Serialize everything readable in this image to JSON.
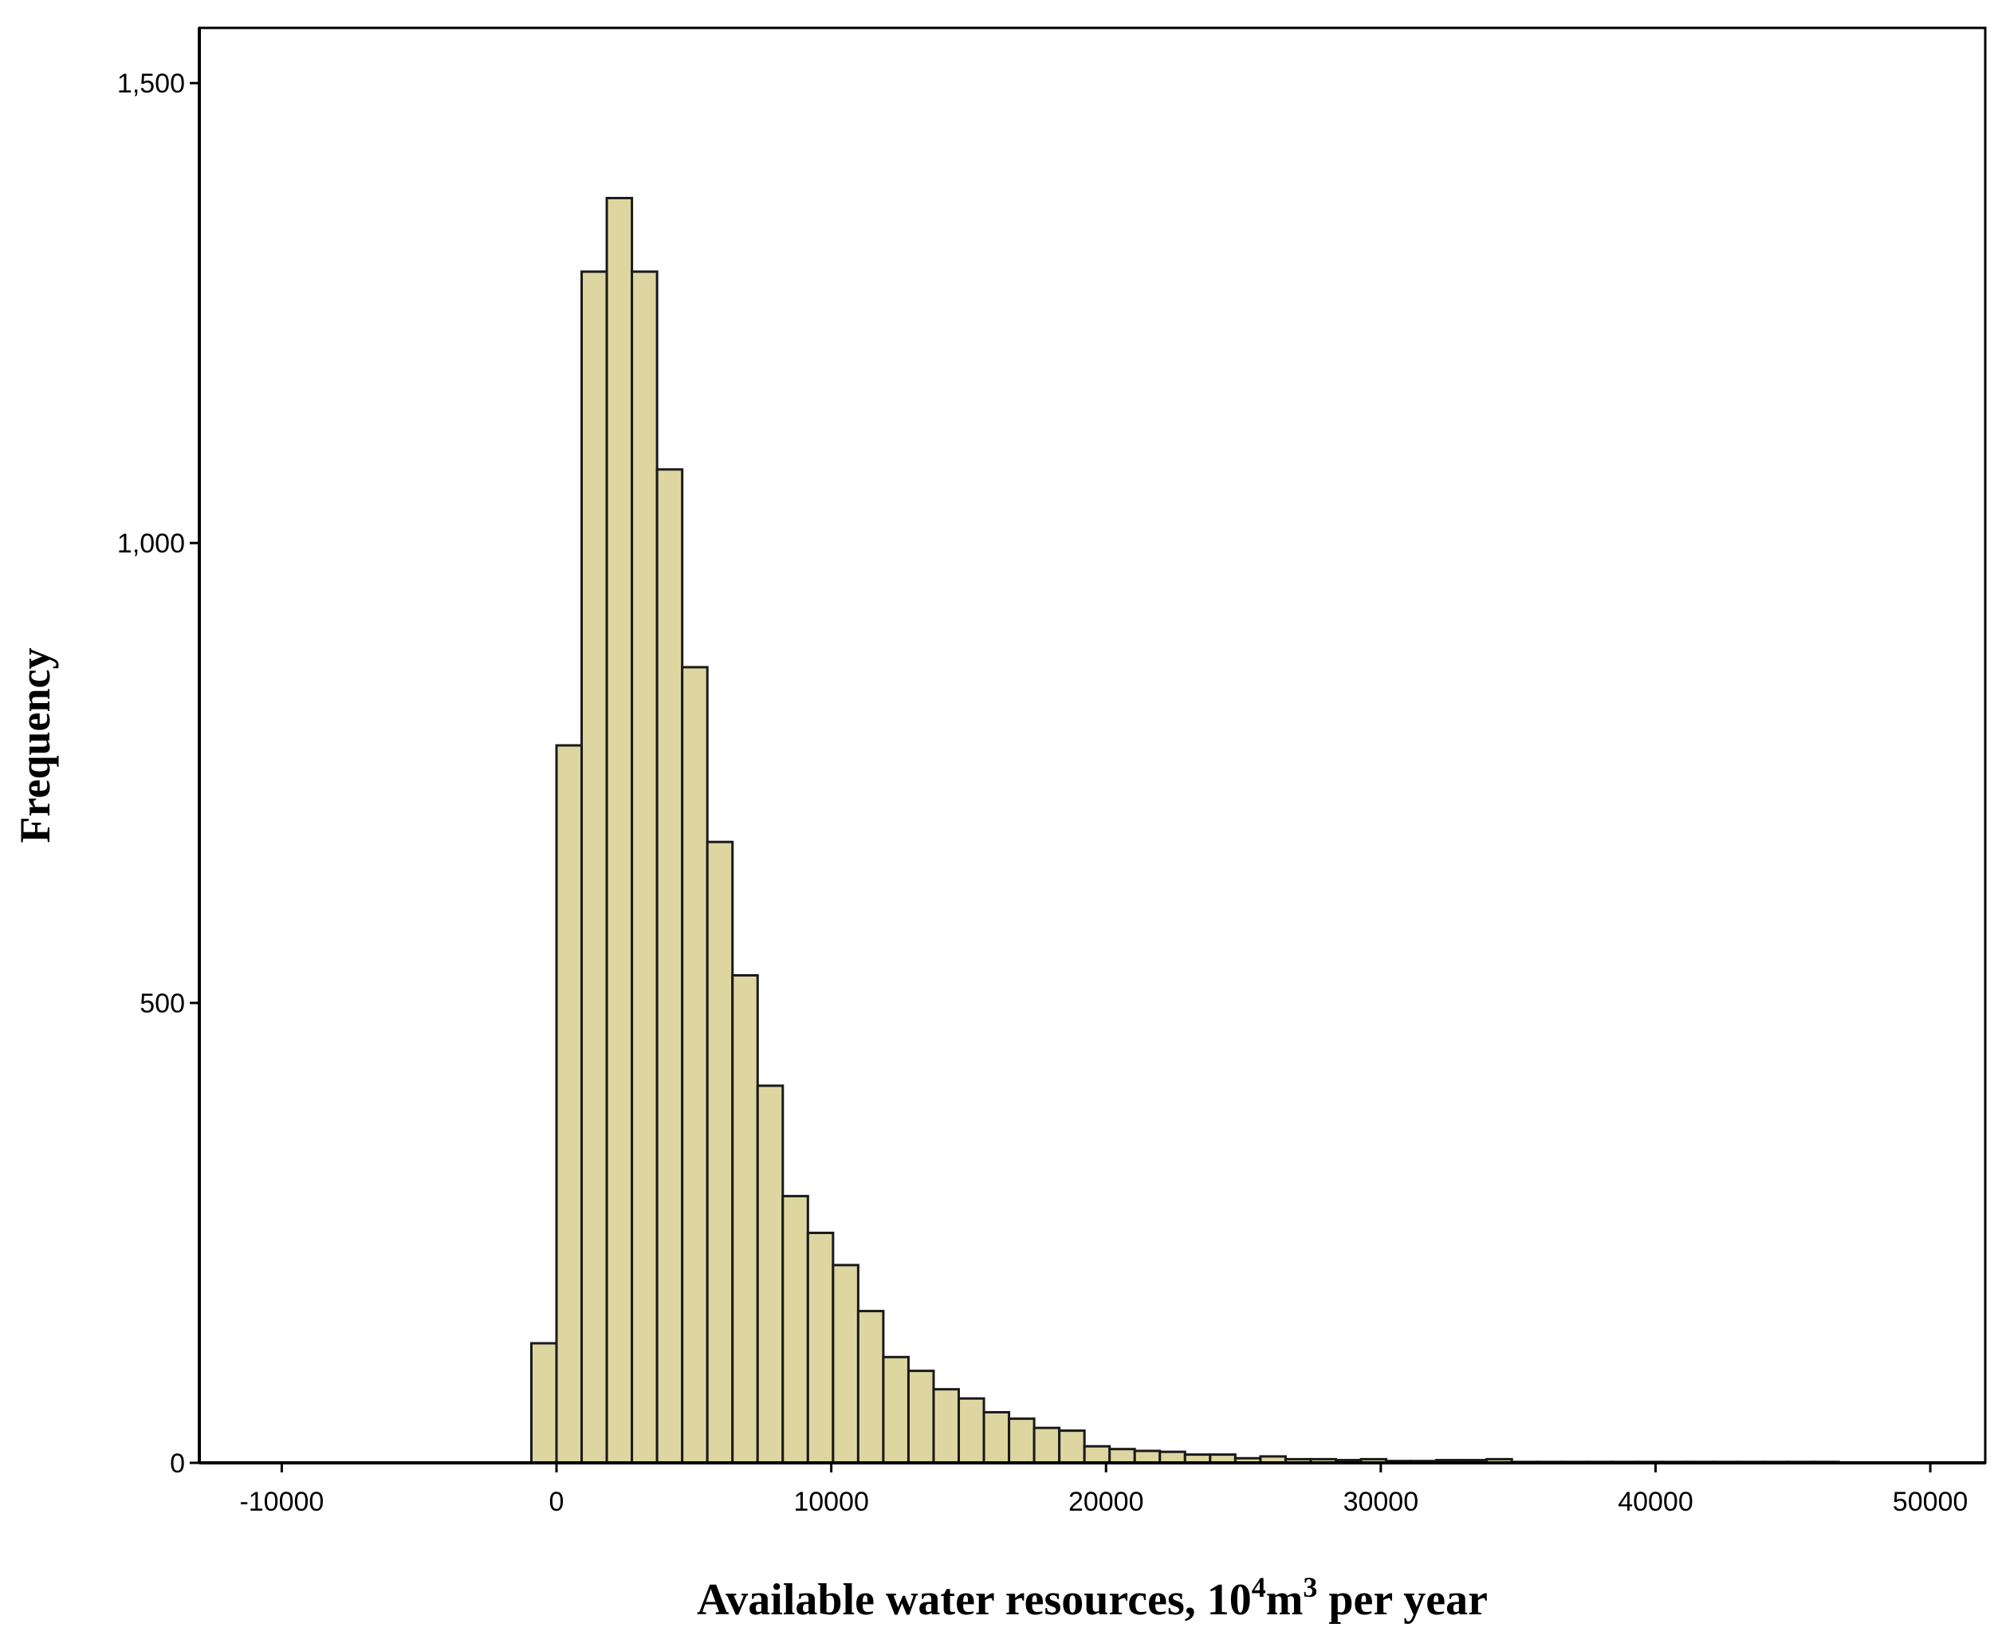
{
  "chart_data": {
    "type": "bar",
    "title": "",
    "xlabel": "Available water resources, 10",
    "xlabel_sup1": "4",
    "xlabel_mid": "m",
    "xlabel_sup2": "3",
    "xlabel_end": " per year",
    "ylabel": "Frequency",
    "xlim": [
      -13000,
      52000
    ],
    "ylim": [
      0,
      1560
    ],
    "x_ticks": [
      -10000,
      0,
      10000,
      20000,
      30000,
      40000,
      50000
    ],
    "x_tick_labels": [
      "-10000",
      "0",
      "10000",
      "20000",
      "30000",
      "40000",
      "50000"
    ],
    "y_ticks": [
      0,
      500,
      1000,
      1500
    ],
    "y_tick_labels": [
      "0",
      "500",
      "1,000",
      "1,500"
    ],
    "bin_width": 915,
    "bin_start": -915,
    "values": [
      130,
      780,
      1295,
      1375,
      1295,
      1080,
      865,
      675,
      530,
      410,
      290,
      250,
      215,
      165,
      115,
      100,
      80,
      70,
      55,
      48,
      38,
      35,
      18,
      15,
      13,
      12,
      9,
      9,
      5,
      7,
      4,
      4,
      3,
      4,
      2,
      2,
      3,
      3,
      4,
      1,
      1,
      1,
      1,
      1,
      1,
      1,
      1,
      1,
      1,
      1,
      1,
      1
    ],
    "grid": false,
    "legend": "none",
    "colors": {
      "bar_fill": "#ddd6a1",
      "bar_stroke": "#1a1a1a",
      "axis": "#000000"
    }
  }
}
